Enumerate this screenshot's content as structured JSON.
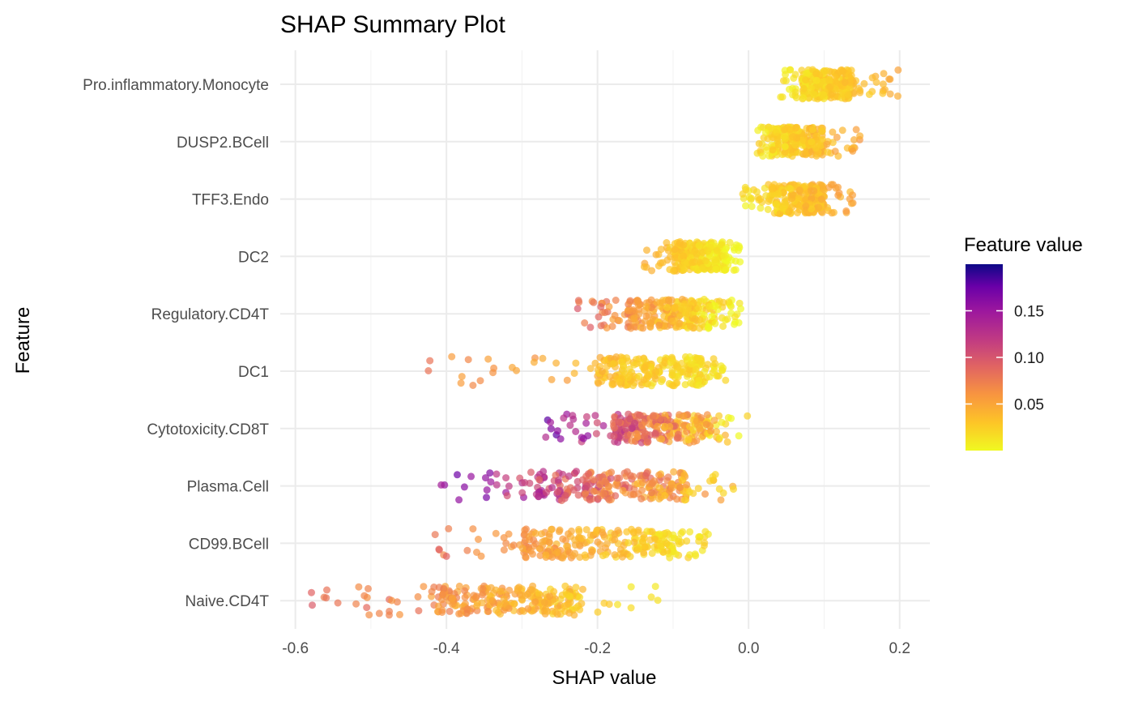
{
  "chart_data": {
    "type": "scatter",
    "title": "SHAP Summary Plot",
    "xlabel": "SHAP value",
    "ylabel": "Feature",
    "xlim": [
      -0.62,
      0.24
    ],
    "x_ticks": [
      -0.6,
      -0.4,
      -0.2,
      0.0,
      0.2
    ],
    "x_tick_labels": [
      "-0.6",
      "-0.4",
      "-0.2",
      "0.0",
      "0.2"
    ],
    "grid": true,
    "legend": {
      "title": "Feature value",
      "position": "right",
      "colormap": "plasma (reversed)",
      "range": [
        0.0,
        0.2
      ],
      "ticks": [
        0.05,
        0.1,
        0.15
      ],
      "tick_labels": [
        "0.05",
        "0.10",
        "0.15"
      ],
      "color_low": "#f0f921",
      "color_high": "#0d0887"
    },
    "features": [
      {
        "name": "Pro.inflammatory.Monocyte",
        "x_min": 0.04,
        "x_max": 0.2,
        "q1": 0.07,
        "q3": 0.14,
        "feature_value_range": [
          0.0,
          0.06
        ]
      },
      {
        "name": "DUSP2.BCell",
        "x_min": 0.01,
        "x_max": 0.15,
        "q1": 0.03,
        "q3": 0.1,
        "feature_value_range": [
          0.0,
          0.07
        ]
      },
      {
        "name": "TFF3.Endo",
        "x_min": -0.01,
        "x_max": 0.14,
        "q1": 0.03,
        "q3": 0.1,
        "feature_value_range": [
          0.0,
          0.07
        ]
      },
      {
        "name": "DC2",
        "x_min": -0.14,
        "x_max": -0.01,
        "q1": -0.1,
        "q3": -0.03,
        "feature_value_range": [
          0.0,
          0.05
        ]
      },
      {
        "name": "Regulatory.CD4T",
        "x_min": -0.23,
        "x_max": -0.01,
        "q1": -0.16,
        "q3": -0.04,
        "feature_value_range": [
          0.0,
          0.1
        ]
      },
      {
        "name": "DC1",
        "x_min": -0.43,
        "x_max": -0.03,
        "q1": -0.2,
        "q3": -0.06,
        "feature_value_range": [
          0.01,
          0.08
        ]
      },
      {
        "name": "Cytotoxicity.CD8T",
        "x_min": -0.27,
        "x_max": 0.0,
        "q1": -0.18,
        "q3": -0.05,
        "feature_value_range": [
          0.0,
          0.18
        ]
      },
      {
        "name": "Plasma.Cell",
        "x_min": -0.41,
        "x_max": -0.02,
        "q1": -0.28,
        "q3": -0.08,
        "feature_value_range": [
          0.02,
          0.18
        ]
      },
      {
        "name": "CD99.BCell",
        "x_min": -0.42,
        "x_max": -0.05,
        "q1": -0.3,
        "q3": -0.09,
        "feature_value_range": [
          0.01,
          0.09
        ]
      },
      {
        "name": "Naive.CD4T",
        "x_min": -0.58,
        "x_max": -0.11,
        "q1": -0.42,
        "q3": -0.22,
        "feature_value_range": [
          0.01,
          0.1
        ]
      }
    ]
  }
}
